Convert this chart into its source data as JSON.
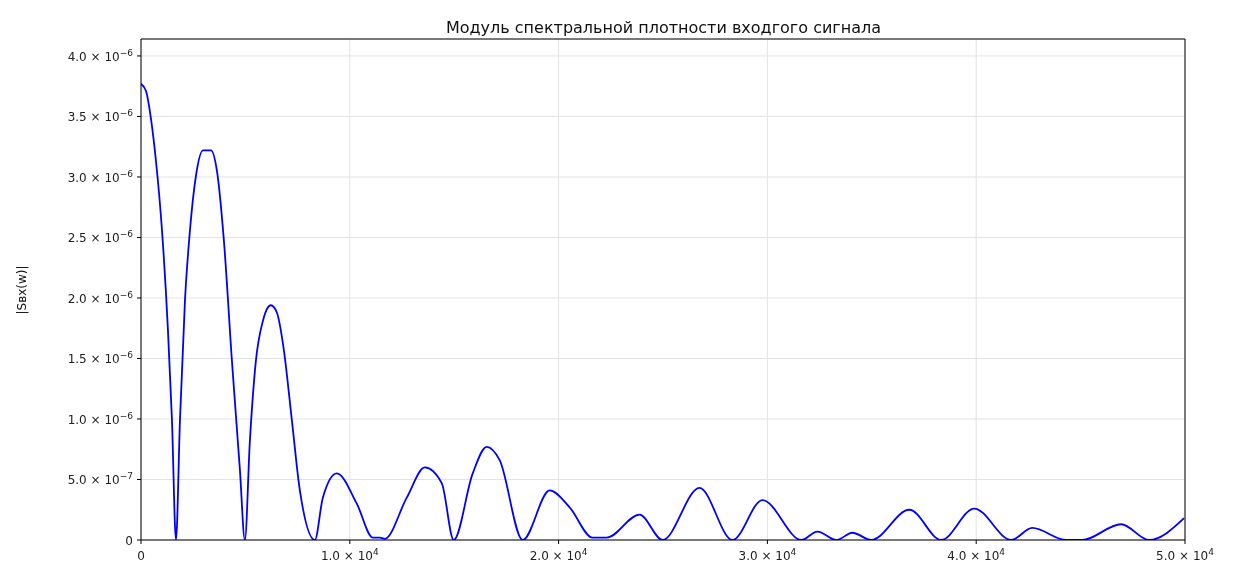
{
  "chart_data": {
    "type": "line",
    "title": "Модуль спектральной плотности входгого сигнала",
    "ylabel": "|Sвх(w)|",
    "x": [
      0,
      239,
      478,
      718,
      1005,
      1292,
      1483,
      1675,
      1866,
      2106,
      2345,
      2632,
      2967,
      3350,
      3637,
      3972,
      4355,
      4737,
      4976,
      5215,
      5502,
      5837,
      6220,
      6507,
      6842,
      7225,
      7608,
      8326,
      8709,
      9378,
      10336,
      11101,
      11436,
      11675,
      12728,
      13590,
      14403,
      14977,
      15886,
      16556,
      17178,
      18279,
      19571,
      20528,
      21628,
      22298,
      23877,
      24978,
      26748,
      28327,
      29763,
      31629,
      32395,
      33304,
      34069,
      34978,
      36796,
      38328,
      39907,
      41677,
      42682,
      44309,
      45075,
      46941,
      48281,
      49955
    ],
    "series": [
      {
        "color": "#0000ff",
        "values": [
          3.77e-06,
          3.71e-06,
          3.48e-06,
          3.13e-06,
          2.56e-06,
          1.73e-06,
          9.9e-07,
          0,
          9.9e-07,
          1.98e-06,
          2.56e-06,
          3.01e-06,
          3.22e-06,
          3.22e-06,
          3.05e-06,
          2.47e-06,
          1.48e-06,
          5.8e-07,
          0,
          8.2e-07,
          1.48e-06,
          1.81e-06,
          1.94e-06,
          1.88e-06,
          1.57e-06,
          9.9e-07,
          4.1e-07,
          0,
          3.5e-07,
          5.5e-07,
          3e-07,
          2e-08,
          2e-08,
          1e-08,
          3.5e-07,
          6e-07,
          4.7e-07,
          0,
          5.5e-07,
          7.7e-07,
          6.6e-07,
          0,
          4.1e-07,
          2.7e-07,
          2e-08,
          2e-08,
          2.1e-07,
          0,
          4.3e-07,
          0,
          3.3e-07,
          0,
          7e-08,
          0,
          6e-08,
          0,
          2.5e-07,
          0,
          2.6e-07,
          0,
          1e-07,
          0,
          0,
          1.3e-07,
          0,
          1.8e-07
        ]
      }
    ],
    "xlim": [
      0,
      50000
    ],
    "xticks": [
      0,
      {
        "value": 10000,
        "label": "1.0 × 10$^{4}$"
      },
      {
        "value": 20000,
        "label": "2.0 × 10$^{4}$"
      },
      {
        "value": 30000,
        "label": "3.0 × 10$^{4}$"
      },
      {
        "value": 40000,
        "label": "4.0 × 10$^{4}$"
      },
      {
        "value": 50000,
        "label": "5.0 × 10$^{4}$"
      }
    ],
    "ylim": [
      0,
      4.14e-06
    ],
    "yticks": [
      0,
      {
        "value": 5e-07,
        "label": "5.0 × 10$^{−7}$"
      },
      {
        "value": 1e-06,
        "label": "1.0 × 10$^{−6}$"
      },
      {
        "value": 1.5e-06,
        "label": "1.5 × 10$^{−6}$"
      },
      {
        "value": 2e-06,
        "label": "2.0 × 10$^{−6}$"
      },
      {
        "value": 2.5e-06,
        "label": "2.5 × 10$^{−6}$"
      },
      {
        "value": 3e-06,
        "label": "3.0 × 10$^{−6}$"
      },
      {
        "value": 3.5e-06,
        "label": "3.5 × 10$^{−6}$"
      },
      {
        "value": 4e-06,
        "label": "4.0 × 10$^{−6}$"
      }
    ],
    "grid": true,
    "marker": "none",
    "line_style": "solid"
  }
}
